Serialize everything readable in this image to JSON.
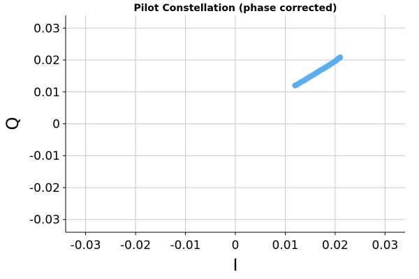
{
  "chart_data": {
    "type": "scatter",
    "title": "Pilot Constellation (phase corrected)",
    "xlabel": "I",
    "ylabel": "Q",
    "xlim": [
      -0.034,
      0.034
    ],
    "ylim": [
      -0.034,
      0.034
    ],
    "grid": true,
    "x_ticks": [
      -0.03,
      -0.02,
      -0.01,
      0,
      0.01,
      0.02,
      0.03
    ],
    "x_tick_labels": [
      "-0.03",
      "-0.02",
      "-0.01",
      "0",
      "0.01",
      "0.02",
      "0.03"
    ],
    "y_ticks": [
      0.03,
      0.02,
      0.01,
      0,
      -0.01,
      -0.02,
      -0.03
    ],
    "y_tick_labels": [
      "0.03",
      "0.02",
      "0.01",
      "0",
      "-0.01",
      "-0.02",
      "-0.03"
    ],
    "series": [
      {
        "color": "#5aaef0",
        "points": [
          [
            0.012,
            0.012
          ],
          [
            0.0124,
            0.0123
          ],
          [
            0.0128,
            0.0127
          ],
          [
            0.0132,
            0.0131
          ],
          [
            0.0136,
            0.0134
          ],
          [
            0.014,
            0.0138
          ],
          [
            0.0144,
            0.0142
          ],
          [
            0.0148,
            0.0146
          ],
          [
            0.0152,
            0.015
          ],
          [
            0.0156,
            0.0153
          ],
          [
            0.016,
            0.0157
          ],
          [
            0.0164,
            0.0161
          ],
          [
            0.0168,
            0.0165
          ],
          [
            0.0172,
            0.0169
          ],
          [
            0.0176,
            0.0172
          ],
          [
            0.018,
            0.0176
          ],
          [
            0.0184,
            0.018
          ],
          [
            0.0188,
            0.0184
          ],
          [
            0.0192,
            0.0188
          ],
          [
            0.0196,
            0.0192
          ],
          [
            0.02,
            0.0196
          ],
          [
            0.0204,
            0.0201
          ],
          [
            0.0207,
            0.0205
          ],
          [
            0.021,
            0.0208
          ]
        ]
      }
    ]
  }
}
